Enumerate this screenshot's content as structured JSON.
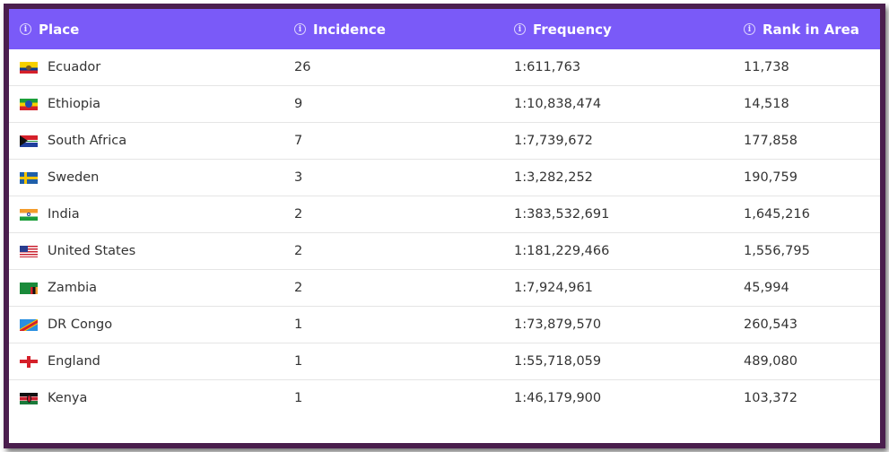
{
  "table": {
    "headers": [
      "Place",
      "Incidence",
      "Frequency",
      "Rank in Area"
    ],
    "colors": {
      "header_bg": "#7a5af8",
      "frame": "#4a1e4d"
    },
    "rows": [
      {
        "place": "Ecuador",
        "flag": "ecuador-flag-icon",
        "incidence": "26",
        "frequency": "1:611,763",
        "rank": "11,738"
      },
      {
        "place": "Ethiopia",
        "flag": "ethiopia-flag-icon",
        "incidence": "9",
        "frequency": "1:10,838,474",
        "rank": "14,518"
      },
      {
        "place": "South Africa",
        "flag": "south-africa-flag-icon",
        "incidence": "7",
        "frequency": "1:7,739,672",
        "rank": "177,858"
      },
      {
        "place": "Sweden",
        "flag": "sweden-flag-icon",
        "incidence": "3",
        "frequency": "1:3,282,252",
        "rank": "190,759"
      },
      {
        "place": "India",
        "flag": "india-flag-icon",
        "incidence": "2",
        "frequency": "1:383,532,691",
        "rank": "1,645,216"
      },
      {
        "place": "United States",
        "flag": "united-states-flag-icon",
        "incidence": "2",
        "frequency": "1:181,229,466",
        "rank": "1,556,795"
      },
      {
        "place": "Zambia",
        "flag": "zambia-flag-icon",
        "incidence": "2",
        "frequency": "1:7,924,961",
        "rank": "45,994"
      },
      {
        "place": "DR Congo",
        "flag": "dr-congo-flag-icon",
        "incidence": "1",
        "frequency": "1:73,879,570",
        "rank": "260,543"
      },
      {
        "place": "England",
        "flag": "england-flag-icon",
        "incidence": "1",
        "frequency": "1:55,718,059",
        "rank": "489,080"
      },
      {
        "place": "Kenya",
        "flag": "kenya-flag-icon",
        "incidence": "1",
        "frequency": "1:46,179,900",
        "rank": "103,372"
      }
    ]
  }
}
